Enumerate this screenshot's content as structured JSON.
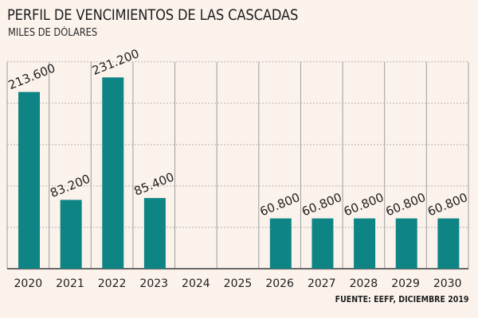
{
  "title": "PERFIL DE VENCIMIENTOS DE LAS CASCADAS",
  "subtitle": "MILES DE DÓLARES",
  "source": "FUENTE: EEFF, DICIEMBRE 2019",
  "colors": {
    "bar": "#0f8485",
    "background": "#fbf2ec"
  },
  "chart_data": {
    "type": "bar",
    "title": "PERFIL DE VENCIMIENTOS DE LAS CASCADAS",
    "subtitle": "MILES DE DÓLARES",
    "categories": [
      "2020",
      "2021",
      "2022",
      "2023",
      "2024",
      "2025",
      "2026",
      "2027",
      "2028",
      "2029",
      "2030"
    ],
    "values": [
      213600,
      83200,
      231200,
      85400,
      null,
      null,
      60800,
      60800,
      60800,
      60800,
      60800
    ],
    "labels": [
      "213.600",
      "83.200",
      "231.200",
      "85.400",
      "",
      "",
      "60.800",
      "60.800",
      "60.800",
      "60.800",
      "60.800"
    ],
    "ylim": [
      0,
      250000
    ],
    "grid": true,
    "legend": "none"
  }
}
